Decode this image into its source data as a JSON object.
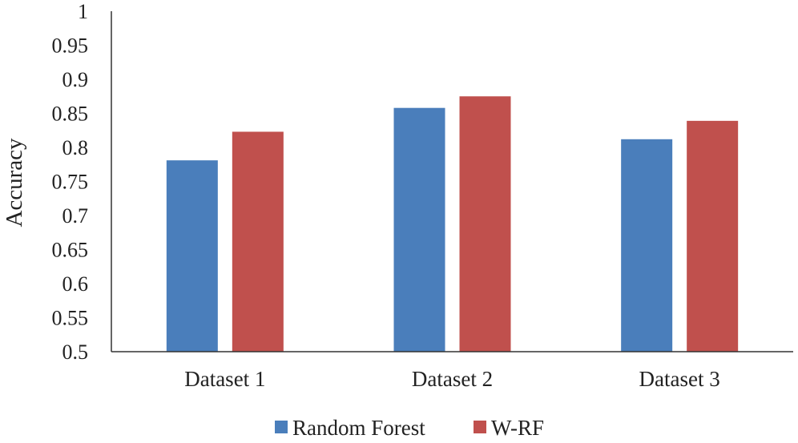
{
  "chart_data": {
    "type": "bar",
    "title": "",
    "xlabel": "",
    "ylabel": "Accuracy",
    "categories": [
      "Dataset 1",
      "Dataset 2",
      "Dataset 3"
    ],
    "series": [
      {
        "name": "Random Forest",
        "color": "#4a7ebb",
        "values": [
          0.781,
          0.858,
          0.812
        ]
      },
      {
        "name": "W-RF",
        "color": "#c0504d",
        "values": [
          0.823,
          0.875,
          0.839
        ]
      }
    ],
    "ylim": [
      0.5,
      1
    ],
    "yticks": [
      "0.5",
      "0.55",
      "0.6",
      "0.65",
      "0.7",
      "0.75",
      "0.8",
      "0.85",
      "0.9",
      "0.95",
      "1"
    ],
    "grid": false,
    "legend_position": "bottom-center"
  }
}
